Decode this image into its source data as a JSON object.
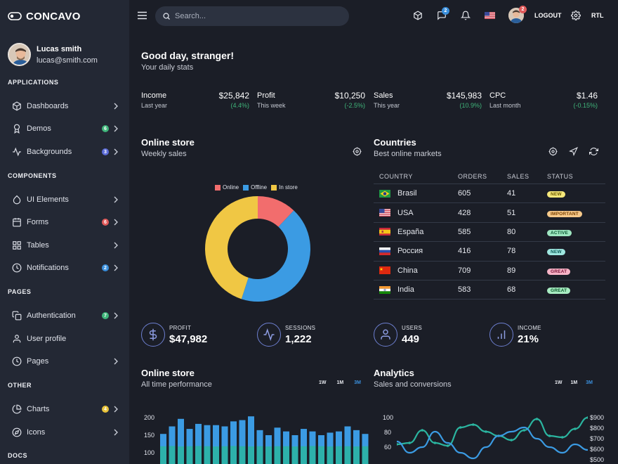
{
  "brand": {
    "name": "CONCAVO"
  },
  "user": {
    "name": "Lucas smith",
    "email": "lucas@smith.com"
  },
  "sidebar": {
    "sections": [
      "APPLICATIONS",
      "COMPONENTS",
      "PAGES",
      "OTHER",
      "DOCS"
    ],
    "items": [
      {
        "label": "Dashboards",
        "icon": "cube-icon"
      },
      {
        "label": "Demos",
        "icon": "award-icon",
        "badge": "6",
        "badge_color": "#3fb57a"
      },
      {
        "label": "Backgrounds",
        "icon": "activity-icon",
        "badge": "3",
        "badge_color": "#5b6bd6"
      },
      {
        "label": "UI Elements",
        "icon": "droplet-icon"
      },
      {
        "label": "Forms",
        "icon": "calendar-icon",
        "badge": "6",
        "badge_color": "#e05a5a"
      },
      {
        "label": "Tables",
        "icon": "grid-icon"
      },
      {
        "label": "Notifications",
        "icon": "clock-icon",
        "badge": "2",
        "badge_color": "#3a8fdc"
      },
      {
        "label": "Authentication",
        "icon": "copy-icon",
        "badge": "7",
        "badge_color": "#3fb57a"
      },
      {
        "label": "User profile",
        "icon": "user-icon"
      },
      {
        "label": "Pages",
        "icon": "clock-icon"
      },
      {
        "label": "Charts",
        "icon": "pie-chart-icon",
        "badge": "4",
        "badge_color": "#e8c33a"
      },
      {
        "label": "Icons",
        "icon": "compass-icon"
      }
    ]
  },
  "topbar": {
    "search_placeholder": "Search...",
    "messages_badge": "2",
    "avatar_badge": "2",
    "logout_label": "LOGOUT",
    "rtl_label": "RTL"
  },
  "greeting": {
    "title": "Good day, stranger!",
    "subtitle": "Your daily stats"
  },
  "stats": [
    {
      "label": "Income",
      "value": "$25,842",
      "period": "Last year",
      "change": "(4.4%)"
    },
    {
      "label": "Profit",
      "value": "$10,250",
      "period": "This week",
      "change": "(-2.5%)"
    },
    {
      "label": "Sales",
      "value": "$145,983",
      "period": "This year",
      "change": "(10.9%)"
    },
    {
      "label": "CPC",
      "value": "$1.46",
      "period": "Last month",
      "change": "(-0.15%)"
    }
  ],
  "online_store": {
    "title": "Online store",
    "subtitle": "Weekly sales"
  },
  "countries": {
    "title": "Countries",
    "subtitle": "Best online markets",
    "headers": [
      "COUNTRY",
      "ORDERS",
      "SALES",
      "STATUS"
    ],
    "rows": [
      {
        "country": "Brasil",
        "orders": "605",
        "sales": "41",
        "status": "NEW",
        "status_bg": "#f5e77a",
        "status_fg": "#6b5a00"
      },
      {
        "country": "USA",
        "orders": "428",
        "sales": "51",
        "status": "IMPORTANT",
        "status_bg": "#f7c98a",
        "status_fg": "#7a4200"
      },
      {
        "country": "España",
        "orders": "585",
        "sales": "80",
        "status": "ACTIVE",
        "status_bg": "#9ee6c0",
        "status_fg": "#0c5a33"
      },
      {
        "country": "Россия",
        "orders": "416",
        "sales": "78",
        "status": "NEW",
        "status_bg": "#9ee6df",
        "status_fg": "#0c5a55"
      },
      {
        "country": "China",
        "orders": "709",
        "sales": "89",
        "status": "GREAT",
        "status_bg": "#f7b3c6",
        "status_fg": "#7a1237"
      },
      {
        "country": "India",
        "orders": "583",
        "sales": "68",
        "status": "GREAT",
        "status_bg": "#a8ecc2",
        "status_fg": "#0c5a2c"
      }
    ]
  },
  "kpis": [
    {
      "label": "PROFIT",
      "value": "$47,982",
      "icon": "dollar-icon"
    },
    {
      "label": "SESSIONS",
      "value": "1,222",
      "icon": "activity-icon"
    },
    {
      "label": "USERS",
      "value": "449",
      "icon": "user-icon"
    },
    {
      "label": "INCOME",
      "value": "21%",
      "icon": "bar-chart-icon"
    }
  ],
  "online_store_perf": {
    "title": "Online store",
    "subtitle": "All time performance",
    "ranges": [
      "1W",
      "1M",
      "3M"
    ]
  },
  "analytics": {
    "title": "Analytics",
    "subtitle": "Sales and conversions",
    "ranges": [
      "1W",
      "1M",
      "3M"
    ]
  },
  "colors": {
    "online": "#f26d6d",
    "offline": "#3b9be3",
    "instore": "#f0c744",
    "accent": "#3a8fdc",
    "teal": "#2bb5a0"
  },
  "chart_data": [
    {
      "type": "pie",
      "title": "Weekly sales",
      "categories": [
        "Online",
        "Offline",
        "In store"
      ],
      "values": [
        12,
        43,
        45
      ]
    },
    {
      "type": "bar",
      "title": "All time performance",
      "ylim": [
        0,
        200
      ],
      "yticks": [
        "200",
        "150",
        "100"
      ],
      "series": [
        {
          "name": "primary",
          "values": [
            135,
            165,
            195,
            155,
            175,
            170,
            170,
            165,
            185,
            190,
            205,
            150,
            130,
            160,
            145,
            130,
            155,
            145,
            130,
            140,
            145,
            165,
            150,
            135
          ]
        },
        {
          "name": "secondary",
          "values": [
            86,
            87,
            85,
            86,
            87,
            86,
            85,
            86,
            87,
            86,
            85,
            86,
            85,
            86,
            86,
            85,
            86,
            87,
            86,
            85,
            86,
            86,
            85,
            86
          ]
        }
      ]
    },
    {
      "type": "line",
      "title": "Sales and conversions",
      "yticks_left": [
        "100",
        "80",
        "60"
      ],
      "yticks_right": [
        "$900",
        "$800",
        "$700",
        "$600",
        "$500"
      ],
      "ylim": [
        40,
        100
      ],
      "series": [
        {
          "name": "sales",
          "values": [
            60,
            62,
            80,
            62,
            58,
            84,
            88,
            78,
            72,
            66,
            80,
            96,
            72,
            70,
            82,
            98
          ]
        },
        {
          "name": "conversions",
          "values": [
            64,
            48,
            56,
            78,
            62,
            48,
            40,
            56,
            72,
            78,
            84,
            68,
            56,
            48,
            60,
            52
          ]
        }
      ]
    }
  ]
}
